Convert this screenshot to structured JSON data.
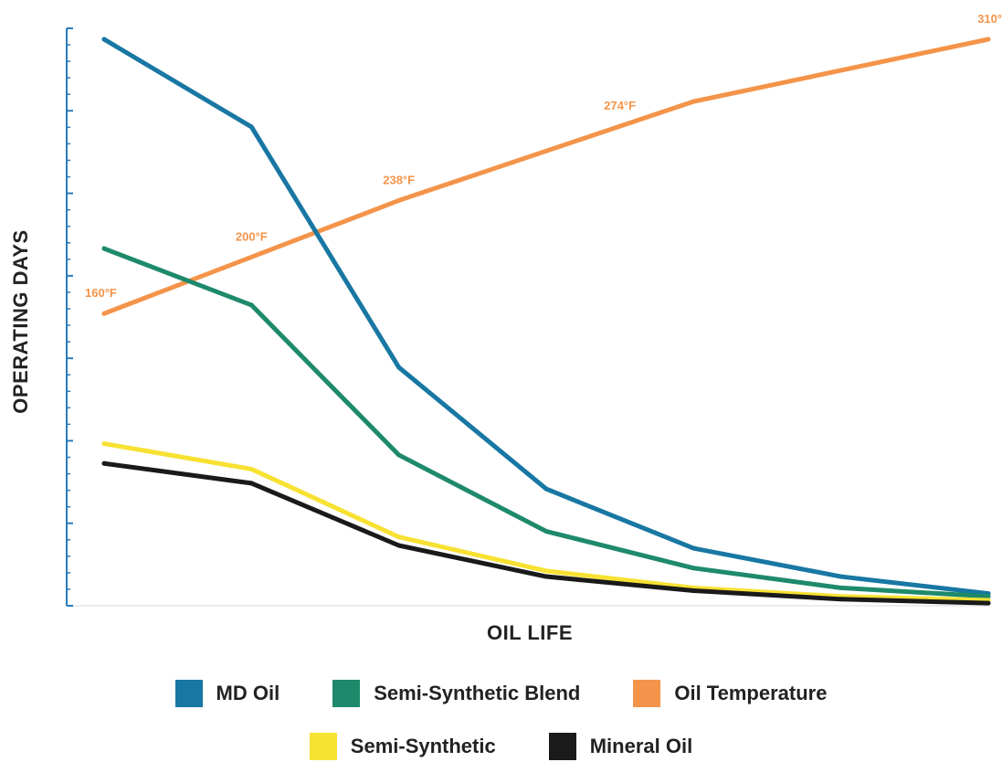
{
  "chart_data": {
    "type": "line",
    "title": "",
    "xlabel": "OIL LIFE",
    "ylabel": "OPERATING DAYS",
    "x": [
      1,
      2,
      3,
      4,
      5,
      6,
      7
    ],
    "ylim": [
      0,
      100
    ],
    "grid": false,
    "legend_position": "bottom",
    "series": [
      {
        "name": "MD Oil",
        "color": "#1877a3",
        "values": [
          100,
          84.5,
          42,
          20.5,
          10,
          5,
          2
        ]
      },
      {
        "name": "Semi-Synthetic Blend",
        "color": "#1e8a6b",
        "values": [
          63,
          53,
          26.5,
          13,
          6.5,
          3,
          1.5
        ]
      },
      {
        "name": "Semi-Synthetic",
        "color": "#f7e233",
        "values": [
          28.5,
          24,
          12,
          6,
          3,
          1.5,
          0.8
        ]
      },
      {
        "name": "Mineral Oil",
        "color": "#1a1a1a",
        "values": [
          25,
          21.5,
          10.5,
          5,
          2.5,
          1,
          0.3
        ]
      },
      {
        "name": "Oil Temperature",
        "color": "#f4944a",
        "values": [
          51.5,
          null,
          71.5,
          null,
          89,
          null,
          100
        ]
      }
    ],
    "temperature_labels": [
      {
        "x": 1,
        "text": "160°F"
      },
      {
        "x": 2,
        "text": "200°F"
      },
      {
        "x": 3,
        "text": "238°F"
      },
      {
        "x": 4.5,
        "text": "274°F"
      },
      {
        "x": 7,
        "text": "310°"
      }
    ]
  },
  "legend": {
    "row1": [
      {
        "label": "MD Oil",
        "color": "#1877a3"
      },
      {
        "label": "Semi-Synthetic Blend",
        "color": "#1e8a6b"
      },
      {
        "label": "Oil Temperature",
        "color": "#f4944a"
      }
    ],
    "row2": [
      {
        "label": "Semi-Synthetic",
        "color": "#f7e233"
      },
      {
        "label": "Mineral Oil",
        "color": "#1a1a1a"
      }
    ]
  }
}
